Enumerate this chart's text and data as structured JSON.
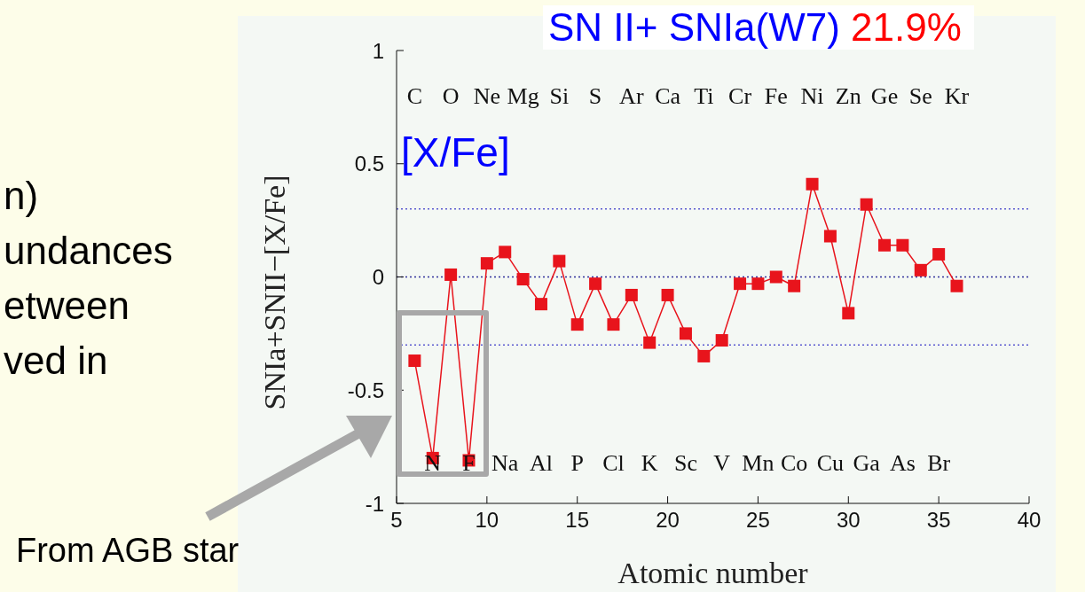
{
  "chart_data": {
    "type": "line",
    "title": "SN II+ SNIa(W7) 21.9%",
    "xlabel": "Atomic number",
    "ylabel": "SNIa+SNII−[X/Fe]",
    "x": [
      6,
      7,
      8,
      9,
      10,
      11,
      12,
      13,
      14,
      15,
      16,
      17,
      18,
      19,
      20,
      21,
      22,
      23,
      24,
      25,
      26,
      27,
      28,
      29,
      30,
      31,
      32,
      33,
      34,
      35,
      36
    ],
    "series": [
      {
        "color": "#e8141c",
        "values": [
          -0.37,
          -0.8,
          0.01,
          -0.81,
          0.06,
          0.11,
          -0.01,
          -0.12,
          0.07,
          -0.21,
          -0.03,
          -0.21,
          -0.08,
          -0.29,
          -0.08,
          -0.25,
          -0.35,
          -0.28,
          -0.03,
          -0.03,
          0.0,
          -0.04,
          0.41,
          0.18,
          -0.16,
          0.32,
          0.14,
          0.14,
          0.03,
          0.1,
          -0.04
        ]
      }
    ],
    "marker": "square",
    "line_style": "solid",
    "xlim": [
      5,
      40
    ],
    "xticks": [
      5,
      10,
      15,
      20,
      25,
      30,
      35,
      40
    ],
    "ylim": [
      -1,
      1
    ],
    "yticks": [
      -1,
      -0.5,
      0,
      0.5,
      1
    ],
    "ref_lines": [
      {
        "axis": "y",
        "value": 0.3,
        "color": "#5a5ad0",
        "line_style": "dotted"
      },
      {
        "axis": "y",
        "value": 0,
        "color": "#30309a",
        "line_style": "dotted"
      },
      {
        "axis": "y",
        "value": -0.3,
        "color": "#5a5ad0",
        "line_style": "dotted"
      }
    ],
    "annotations": [
      "C",
      "N",
      "O",
      "F",
      "Ne",
      "Na",
      "Mg",
      "Al",
      "Si",
      "P",
      "S",
      "Cl",
      "Ar",
      "K",
      "Ca",
      "Sc",
      "Ti",
      "V",
      "Cr",
      "Mn",
      "Fe",
      "Co",
      "Ni",
      "Cu",
      "Zn",
      "Ga",
      "Ge",
      "As",
      "Se",
      "Br",
      "Kr",
      "[X/Fe]",
      "From AGB star",
      "n)",
      "undances",
      "etween",
      "ved in"
    ]
  }
}
